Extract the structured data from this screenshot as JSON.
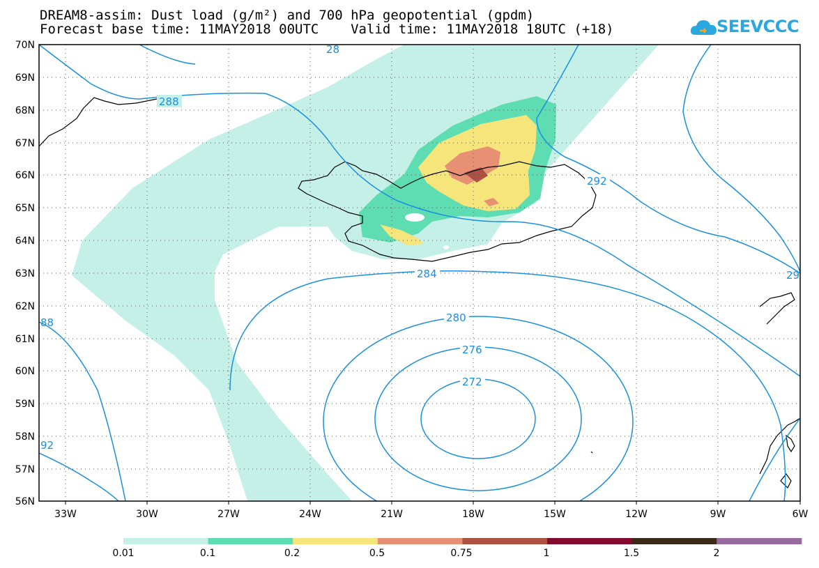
{
  "title": {
    "line1": "DREAM8-assim: Dust load (g/m²) and 700 hPa geopotential (gpdm)",
    "line2": "Forecast base time: 11MAY2018 00UTC    Valid time: 11MAY2018 18UTC (+18)"
  },
  "logo": {
    "text": "SEEVCCC",
    "icon": "cloud-icon"
  },
  "map": {
    "lat_labels": [
      "70N",
      "69N",
      "68N",
      "67N",
      "66N",
      "65N",
      "64N",
      "63N",
      "62N",
      "61N",
      "60N",
      "59N",
      "58N",
      "57N",
      "56N"
    ],
    "lon_labels": [
      "33W",
      "30W",
      "27W",
      "24W",
      "21W",
      "18W",
      "15W",
      "12W",
      "9W",
      "6W"
    ],
    "contour_labels": [
      "288",
      "292",
      "284",
      "280",
      "276",
      "272",
      "88",
      "92",
      "29",
      "28"
    ],
    "grid": "dotted",
    "contour_color": "#1a8fe0"
  },
  "colorbar": {
    "tick_labels": [
      "0.01",
      "0.1",
      "0.2",
      "0.5",
      "0.75",
      "1",
      "1.5",
      "2"
    ],
    "colors": [
      "#c4f0e8",
      "#5edcb2",
      "#f5e57a",
      "#e89073",
      "#ad5143",
      "#840a2e",
      "#3c2a18",
      "#976aa0"
    ]
  }
}
